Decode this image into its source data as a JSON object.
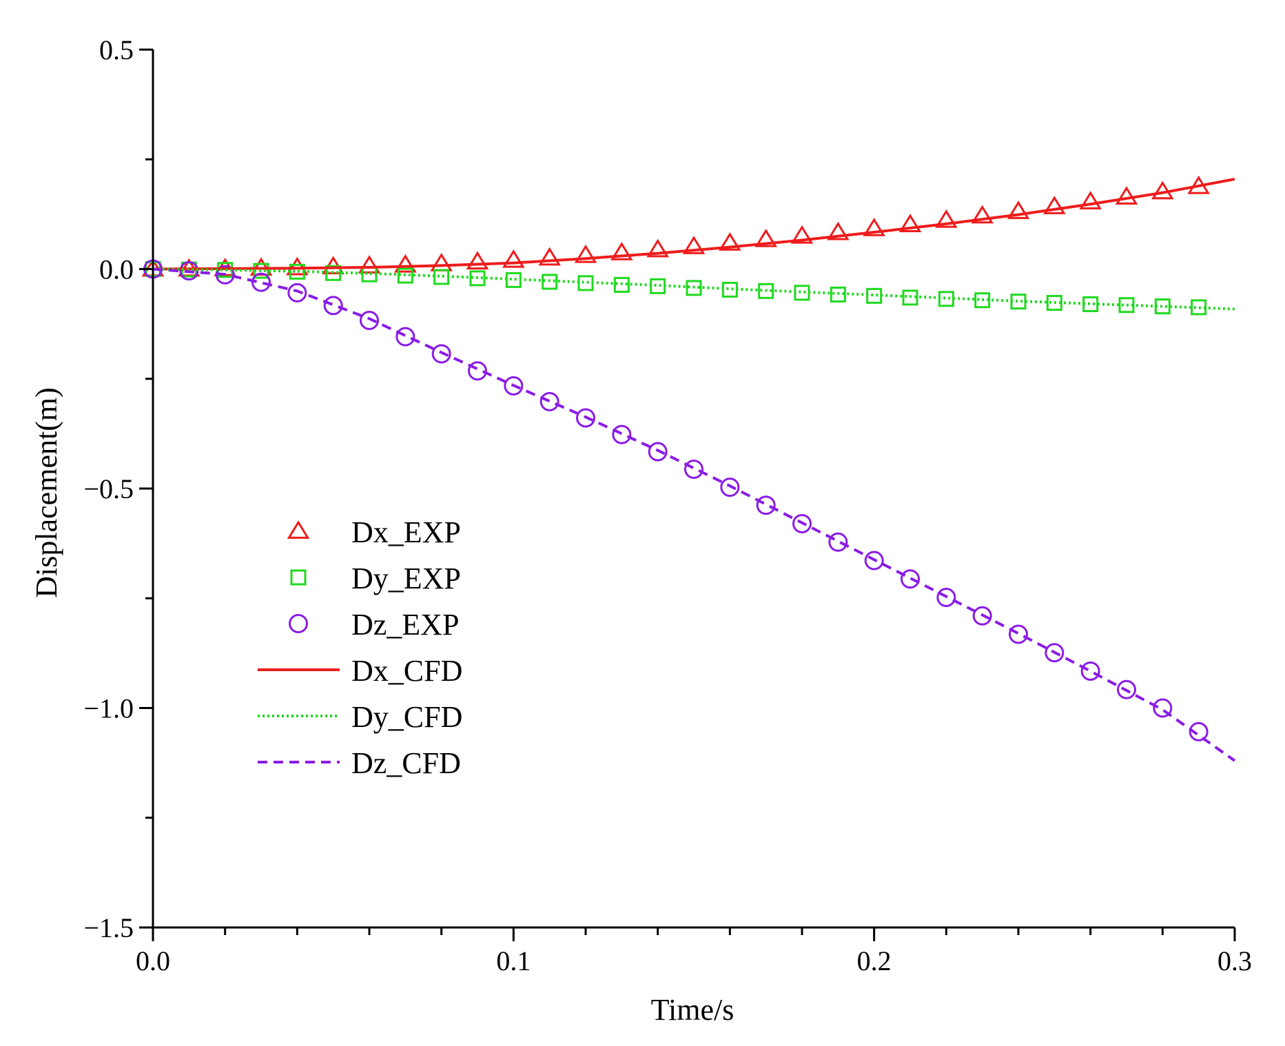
{
  "chart_data": {
    "type": "line",
    "xlabel": "Time/s",
    "ylabel": "Displacement(m)",
    "xlim": [
      0,
      0.3
    ],
    "ylim": [
      -1.5,
      0.5
    ],
    "x_ticks": [
      0.0,
      0.1,
      0.2,
      0.3
    ],
    "x_tick_labels": [
      "0.0",
      "0.1",
      "0.2",
      "0.3"
    ],
    "x_minor_ticks": [
      0.02,
      0.04,
      0.06,
      0.08,
      0.12,
      0.14,
      0.16,
      0.18,
      0.22,
      0.24,
      0.26,
      0.28
    ],
    "y_ticks": [
      0.5,
      0.0,
      -0.5,
      -1.0,
      -1.5
    ],
    "y_tick_labels": [
      "0.5",
      "0.0",
      "−0.5",
      "−1.0",
      "−1.5"
    ],
    "y_minor_ticks": [
      0.25,
      -0.25,
      -0.75,
      -1.25
    ],
    "grid": false,
    "legend_position": "lower-left",
    "x": [
      0.0,
      0.01,
      0.02,
      0.03,
      0.04,
      0.05,
      0.06,
      0.07,
      0.08,
      0.09,
      0.1,
      0.11,
      0.12,
      0.13,
      0.14,
      0.15,
      0.16,
      0.17,
      0.18,
      0.19,
      0.2,
      0.21,
      0.22,
      0.23,
      0.24,
      0.25,
      0.26,
      0.27,
      0.28,
      0.29
    ],
    "series": [
      {
        "name": "Dx_EXP",
        "kind": "marker",
        "marker": "triangle",
        "color": "#ee1c1c",
        "values": [
          0.0,
          0.0,
          0.001,
          0.002,
          0.003,
          0.005,
          0.007,
          0.009,
          0.012,
          0.016,
          0.02,
          0.025,
          0.031,
          0.037,
          0.044,
          0.051,
          0.059,
          0.067,
          0.075,
          0.083,
          0.092,
          0.101,
          0.111,
          0.121,
          0.131,
          0.142,
          0.153,
          0.164,
          0.176,
          0.188
        ]
      },
      {
        "name": "Dy_EXP",
        "kind": "marker",
        "marker": "square",
        "color": "#1fd91f",
        "values": [
          0.0,
          -0.001,
          -0.002,
          -0.004,
          -0.006,
          -0.009,
          -0.012,
          -0.015,
          -0.018,
          -0.021,
          -0.025,
          -0.029,
          -0.032,
          -0.036,
          -0.039,
          -0.043,
          -0.047,
          -0.05,
          -0.054,
          -0.058,
          -0.061,
          -0.065,
          -0.068,
          -0.071,
          -0.074,
          -0.077,
          -0.08,
          -0.082,
          -0.085,
          -0.087
        ]
      },
      {
        "name": "Dz_EXP",
        "kind": "marker",
        "marker": "circle",
        "color": "#8a1ce6",
        "values": [
          0.0,
          -0.004,
          -0.013,
          -0.03,
          -0.054,
          -0.083,
          -0.117,
          -0.154,
          -0.193,
          -0.232,
          -0.266,
          -0.302,
          -0.339,
          -0.377,
          -0.416,
          -0.456,
          -0.497,
          -0.538,
          -0.58,
          -0.622,
          -0.664,
          -0.706,
          -0.748,
          -0.79,
          -0.832,
          -0.874,
          -0.916,
          -0.958,
          -1.0,
          -1.054
        ]
      },
      {
        "name": "Dx_CFD",
        "kind": "line",
        "dash": "solid",
        "color": "#ee1c1c",
        "x": [
          0.0,
          0.02,
          0.04,
          0.06,
          0.08,
          0.1,
          0.12,
          0.14,
          0.16,
          0.18,
          0.2,
          0.22,
          0.24,
          0.26,
          0.28,
          0.3
        ],
        "values": [
          0.0,
          0.001,
          0.002,
          0.004,
          0.008,
          0.014,
          0.024,
          0.036,
          0.05,
          0.066,
          0.084,
          0.103,
          0.124,
          0.148,
          0.174,
          0.205
        ]
      },
      {
        "name": "Dy_CFD",
        "kind": "line",
        "dash": "dotted",
        "color": "#1fd91f",
        "x": [
          0.0,
          0.02,
          0.04,
          0.06,
          0.08,
          0.1,
          0.12,
          0.14,
          0.16,
          0.18,
          0.2,
          0.22,
          0.24,
          0.26,
          0.28,
          0.3
        ],
        "values": [
          0.0,
          -0.002,
          -0.005,
          -0.01,
          -0.016,
          -0.023,
          -0.03,
          -0.037,
          -0.045,
          -0.052,
          -0.059,
          -0.066,
          -0.073,
          -0.079,
          -0.085,
          -0.091
        ]
      },
      {
        "name": "Dz_CFD",
        "kind": "line",
        "dash": "dashed",
        "color": "#8a1ce6",
        "x": [
          0.0,
          0.02,
          0.04,
          0.06,
          0.08,
          0.1,
          0.12,
          0.14,
          0.16,
          0.18,
          0.2,
          0.22,
          0.24,
          0.26,
          0.28,
          0.3
        ],
        "values": [
          0.0,
          -0.012,
          -0.05,
          -0.113,
          -0.19,
          -0.265,
          -0.337,
          -0.413,
          -0.494,
          -0.578,
          -0.662,
          -0.746,
          -0.83,
          -0.916,
          -1.004,
          -1.12
        ]
      }
    ]
  }
}
